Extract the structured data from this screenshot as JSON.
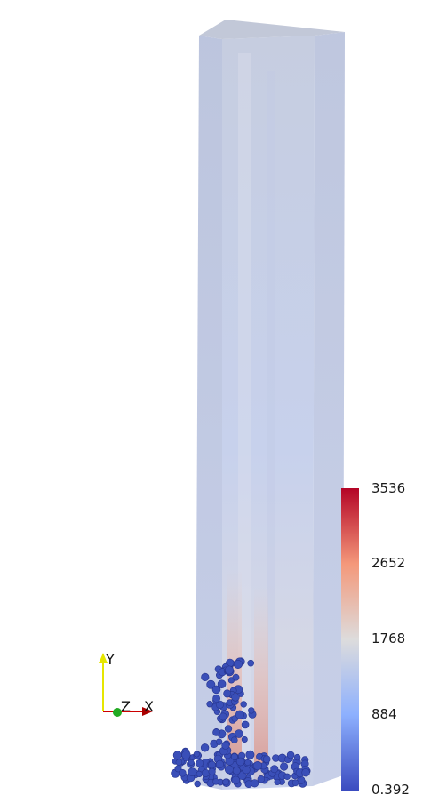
{
  "colorbar": {
    "max_label": "3536",
    "label_2": "2652",
    "label_3": "1768",
    "label_4": "884",
    "min_label": "0.392",
    "colors": {
      "high": "#b40426",
      "mid_high": "#f4987a",
      "mid": "#dddcdc",
      "mid_low": "#8db0fe",
      "low": "#3b4cc0"
    }
  },
  "orientation_axes": {
    "y_label": "Y",
    "z_label": "Z",
    "x_label": "X",
    "colors": {
      "y_axis": "#e6e600",
      "x_axis": "#cc0000",
      "z_axis": "#22aa22"
    }
  },
  "scene": {
    "column_color": "#c9d3ea",
    "particle_color": "#3a4fb8"
  }
}
